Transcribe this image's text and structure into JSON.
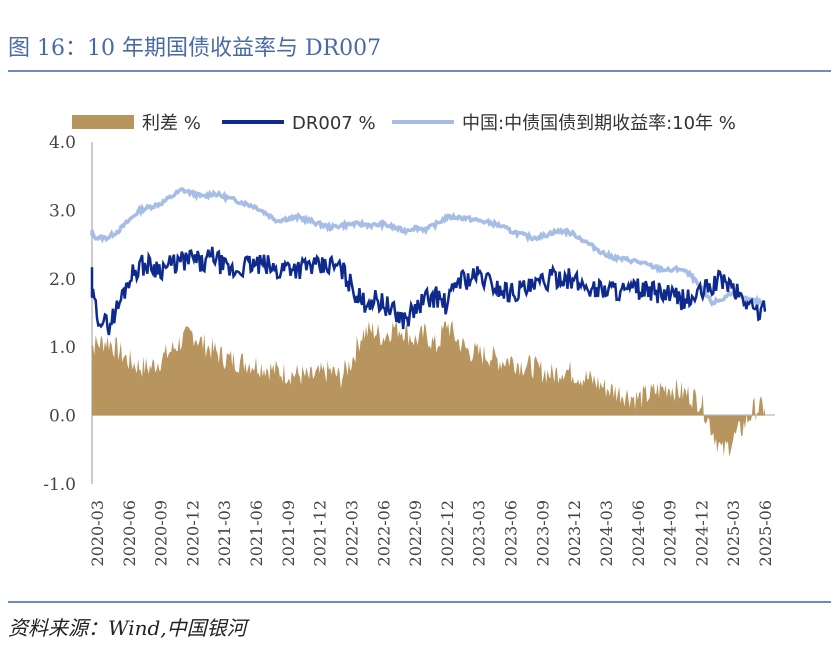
{
  "figure": {
    "title": "图 16：10 年期国债收益率与 DR007",
    "source": "资料来源：Wind,中国银河"
  },
  "colors": {
    "spread": "#b8955e",
    "dr007": "#0d2a8c",
    "cgb10y": "#a6bde6",
    "title": "#4a6aa5",
    "rule": "#6f8ac0"
  },
  "chart_data": {
    "type": "line",
    "title": "",
    "xlabel": "",
    "ylabel": "",
    "ylim": [
      -1.0,
      4.0
    ],
    "yticks": [
      "4.0",
      "3.0",
      "2.0",
      "1.0",
      "0.0",
      "-1.0"
    ],
    "x_tick_labels": [
      "2020-03",
      "2020-06",
      "2020-09",
      "2020-12",
      "2021-03",
      "2021-06",
      "2021-09",
      "2021-12",
      "2022-03",
      "2022-06",
      "2022-09",
      "2022-12",
      "2023-03",
      "2023-06",
      "2023-09",
      "2023-12",
      "2024-03",
      "2024-06",
      "2024-09",
      "2024-12",
      "2025-03",
      "2025-06"
    ],
    "legend_position": "top",
    "x": [
      "2020-02",
      "2020-03",
      "2020-04",
      "2020-05",
      "2020-06",
      "2020-07",
      "2020-08",
      "2020-09",
      "2020-10",
      "2020-11",
      "2020-12",
      "2021-01",
      "2021-02",
      "2021-03",
      "2021-04",
      "2021-05",
      "2021-06",
      "2021-07",
      "2021-08",
      "2021-09",
      "2021-10",
      "2021-11",
      "2021-12",
      "2022-01",
      "2022-02",
      "2022-03",
      "2022-04",
      "2022-05",
      "2022-06",
      "2022-07",
      "2022-08",
      "2022-09",
      "2022-10",
      "2022-11",
      "2022-12",
      "2023-01",
      "2023-02",
      "2023-03",
      "2023-04",
      "2023-05",
      "2023-06",
      "2023-07",
      "2023-08",
      "2023-09",
      "2023-10",
      "2023-11",
      "2023-12",
      "2024-01",
      "2024-02",
      "2024-03",
      "2024-04",
      "2024-05",
      "2024-06",
      "2024-07",
      "2024-08",
      "2024-09",
      "2024-10",
      "2024-11",
      "2024-12",
      "2025-01",
      "2025-02",
      "2025-03",
      "2025-04",
      "2025-05",
      "2025-06"
    ],
    "series": [
      {
        "name": "利差 %",
        "style": "area",
        "values": [
          1.0,
          1.05,
          1.1,
          0.95,
          0.8,
          0.72,
          0.7,
          0.82,
          0.95,
          1.1,
          1.2,
          1.05,
          0.95,
          0.85,
          0.8,
          0.78,
          0.75,
          0.7,
          0.65,
          0.62,
          0.6,
          0.55,
          0.6,
          0.65,
          0.55,
          0.8,
          1.2,
          1.25,
          1.15,
          1.3,
          1.25,
          1.1,
          1.2,
          1.0,
          1.35,
          1.1,
          0.95,
          0.9,
          0.88,
          0.8,
          0.82,
          0.75,
          0.72,
          0.65,
          0.6,
          0.68,
          0.62,
          0.55,
          0.5,
          0.4,
          0.35,
          0.3,
          0.25,
          0.3,
          0.38,
          0.42,
          0.35,
          0.3,
          0.2,
          -0.2,
          -0.55,
          -0.35,
          -0.15,
          0.1,
          0.12
        ]
      },
      {
        "name": "DR007 %",
        "style": "line",
        "values": [
          2.1,
          1.5,
          1.3,
          1.6,
          2.0,
          2.2,
          2.2,
          2.15,
          2.2,
          2.25,
          2.3,
          2.2,
          2.35,
          2.15,
          2.1,
          2.2,
          2.2,
          2.2,
          2.1,
          2.2,
          2.15,
          2.2,
          2.15,
          2.2,
          2.15,
          1.9,
          1.65,
          1.7,
          1.65,
          1.5,
          1.4,
          1.55,
          1.7,
          1.75,
          1.6,
          2.0,
          2.0,
          2.05,
          1.95,
          1.85,
          1.8,
          1.85,
          1.85,
          1.95,
          2.0,
          2.05,
          1.95,
          1.9,
          1.85,
          1.85,
          1.85,
          1.8,
          1.85,
          1.8,
          1.8,
          1.75,
          1.7,
          1.7,
          1.8,
          1.9,
          2.0,
          1.85,
          1.7,
          1.55,
          1.52
        ]
      },
      {
        "name": "中国:中债国债到期收益率:10年 %",
        "style": "line",
        "values": [
          2.7,
          2.6,
          2.6,
          2.7,
          2.85,
          3.0,
          3.05,
          3.1,
          3.2,
          3.3,
          3.25,
          3.2,
          3.25,
          3.2,
          3.15,
          3.1,
          3.05,
          2.95,
          2.85,
          2.88,
          2.9,
          2.85,
          2.8,
          2.75,
          2.78,
          2.8,
          2.8,
          2.78,
          2.8,
          2.75,
          2.7,
          2.75,
          2.72,
          2.8,
          2.9,
          2.9,
          2.88,
          2.85,
          2.82,
          2.78,
          2.7,
          2.65,
          2.6,
          2.62,
          2.68,
          2.7,
          2.65,
          2.55,
          2.45,
          2.35,
          2.3,
          2.28,
          2.25,
          2.2,
          2.15,
          2.12,
          2.15,
          2.05,
          1.85,
          1.65,
          1.7,
          1.82,
          1.7,
          1.68,
          1.65
        ]
      }
    ]
  }
}
